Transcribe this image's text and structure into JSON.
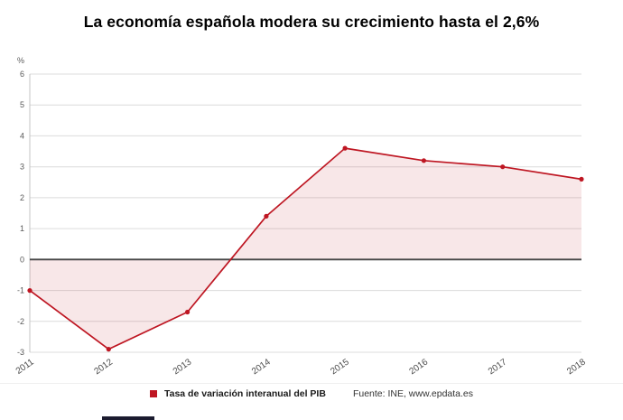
{
  "title": "La economía española modera su crecimiento hasta el 2,6%",
  "chart_data": {
    "type": "line",
    "categories": [
      "2011",
      "2012",
      "2013",
      "2014",
      "2015",
      "2016",
      "2017",
      "2018"
    ],
    "series": [
      {
        "name": "Tasa de variación interanual del PIB",
        "values": [
          -1.0,
          -2.9,
          -1.7,
          1.4,
          3.6,
          3.2,
          3.0,
          2.6
        ]
      }
    ],
    "title": "La economía española modera su crecimiento hasta el 2,6%",
    "xlabel": "",
    "ylabel": "%",
    "ylim": [
      -3,
      6
    ],
    "yticks": [
      6,
      5,
      4,
      3,
      2,
      1,
      0,
      -1,
      -2,
      -3
    ],
    "grid": true,
    "legend_position": "bottom",
    "area_fill_to_zero": true,
    "colors": {
      "line": "#be1622",
      "marker": "#be1622",
      "fill": "rgba(190,22,34,0.10)",
      "zero_line": "#464646",
      "grid": "#dcdcdc",
      "axis": "#c4c4c4",
      "tick_text": "#595959"
    }
  },
  "legend": {
    "label": "Tasa de variación interanual del PIB"
  },
  "source": "Fuente: INE, www.epdata.es"
}
